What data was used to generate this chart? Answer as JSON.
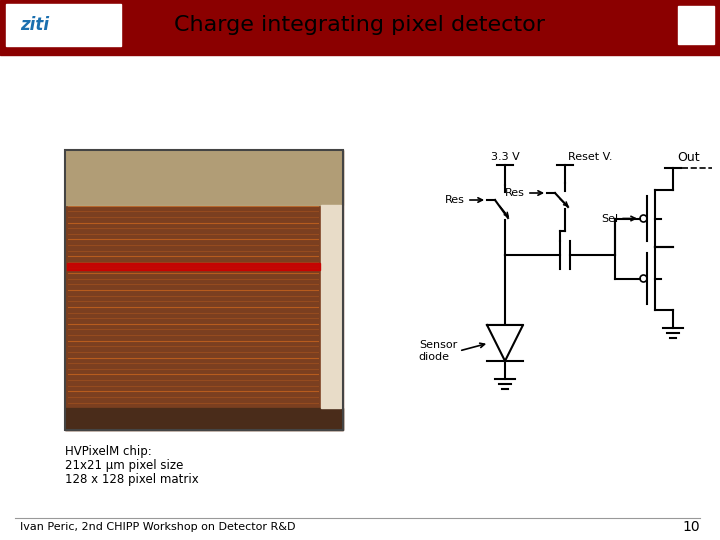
{
  "title": "Charge integrating pixel detector",
  "title_fontsize": 16,
  "header_bg": "#8B0000",
  "white_bg": "#FFFFFF",
  "footer_text": "Ivan Peric, 2nd CHIPP Workshop on Detector R&D",
  "footer_number": "10",
  "chip_text_line1": "HVPixelM chip:",
  "chip_text_line2": "21x21 µm pixel size",
  "chip_text_line3": "128 x 128 pixel matrix",
  "circuit_label_33v": "3.3 V",
  "circuit_label_res1": "Res",
  "circuit_label_res2": "Res",
  "circuit_label_resetv": "Reset V.",
  "circuit_label_sel": "Sel",
  "circuit_label_out": "Out",
  "circuit_label_sensor": "Sensor\ndiode",
  "line_color": "#000000"
}
